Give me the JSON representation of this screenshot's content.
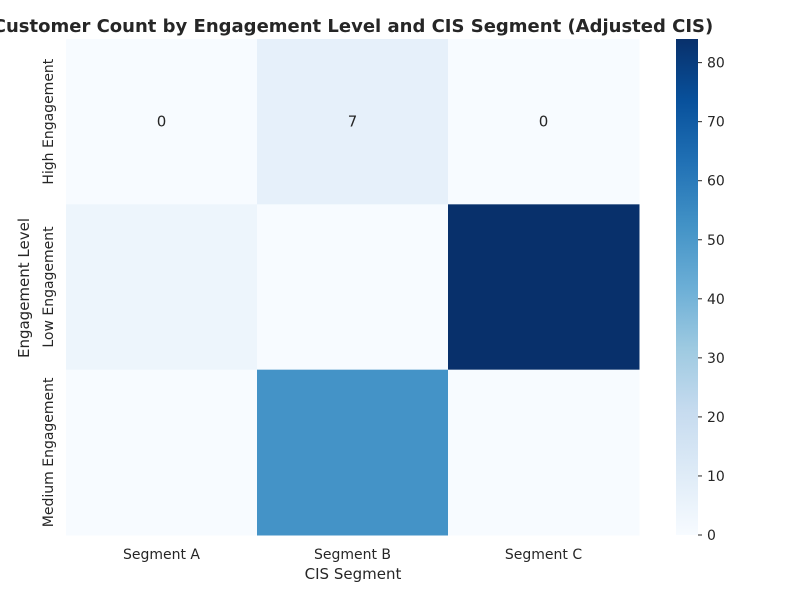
{
  "chart_data": {
    "type": "heatmap",
    "title": "Customer Count by Engagement Level and CIS Segment (Adjusted CIS)",
    "xlabel": "CIS Segment",
    "ylabel": "Engagement Level",
    "x_categories": [
      "Segment A",
      "Segment B",
      "Segment C"
    ],
    "y_categories": [
      "High Engagement",
      "Low Engagement",
      "Medium Engagement"
    ],
    "values": [
      [
        0,
        7,
        0
      ],
      [
        4,
        0,
        84
      ],
      [
        0,
        52,
        0
      ]
    ],
    "annotations": [
      [
        "0",
        "7",
        "0"
      ],
      [
        "",
        "",
        ""
      ],
      [
        "",
        "",
        ""
      ]
    ],
    "colormap": "Blues",
    "color_range": [
      0,
      84
    ],
    "colorbar_ticks": [
      0,
      10,
      20,
      30,
      40,
      50,
      60,
      70,
      80
    ],
    "grid": false
  }
}
